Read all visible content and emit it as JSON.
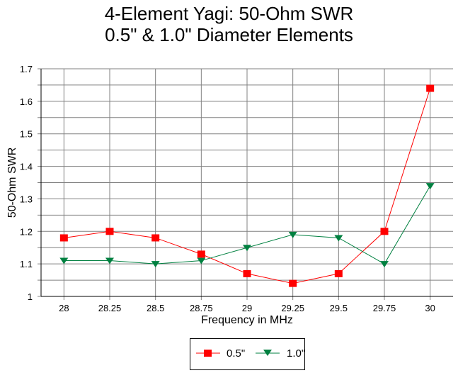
{
  "chart_data": {
    "type": "line",
    "title": "4-Element Yagi:  50-Ohm SWR",
    "subtitle": "0.5\" & 1.0\" Diameter Elements",
    "xlabel": "Frequency in MHz",
    "ylabel": "50-Ohm SWR",
    "categories": [
      "28",
      "28.25",
      "28.5",
      "28.75",
      "29",
      "29.25",
      "29.5",
      "29.75",
      "30"
    ],
    "yticks": [
      "1",
      "1.1",
      "1.2",
      "1.3",
      "1.4",
      "1.5",
      "1.6",
      "1.7"
    ],
    "ylim": [
      1.0,
      1.7
    ],
    "grid": true,
    "legend_position": "bottom",
    "series": [
      {
        "name": "0.5\"",
        "color": "#ff0000",
        "marker": "square",
        "values": [
          1.18,
          1.2,
          1.18,
          1.13,
          1.07,
          1.04,
          1.07,
          1.2,
          1.64
        ]
      },
      {
        "name": "1.0\"",
        "color": "#008040",
        "marker": "triangle-down",
        "values": [
          1.11,
          1.11,
          1.1,
          1.11,
          1.15,
          1.19,
          1.18,
          1.1,
          1.34
        ]
      }
    ]
  }
}
